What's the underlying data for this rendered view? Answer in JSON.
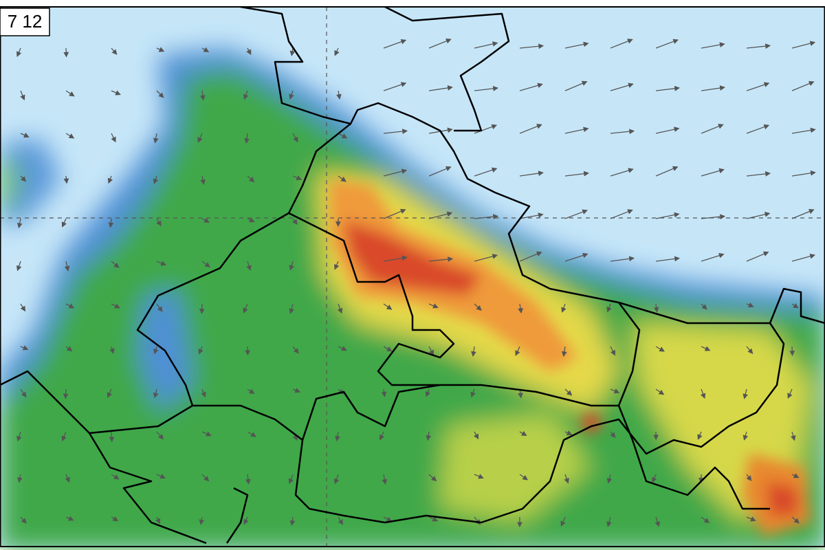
{
  "map_label": "7 12"
}
